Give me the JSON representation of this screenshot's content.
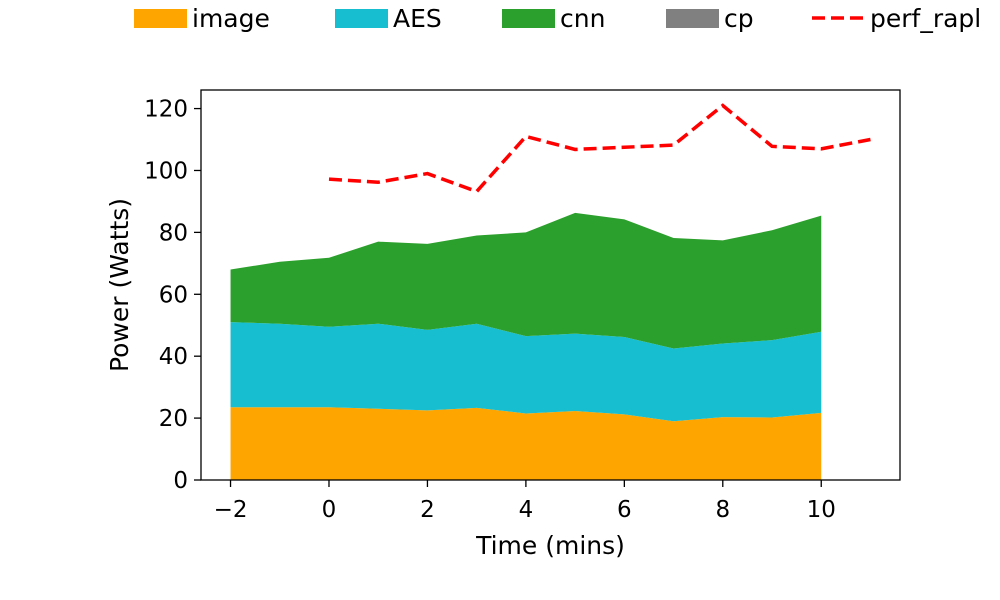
{
  "chart_data": {
    "type": "area",
    "title": "",
    "xlabel": "Time (mins)",
    "ylabel": "Power (Watts)",
    "xlim": [
      -2.6,
      11.6
    ],
    "ylim": [
      0,
      126
    ],
    "xticks": [
      -2,
      0,
      2,
      4,
      6,
      8,
      10
    ],
    "xtick_labels": [
      "−2",
      "0",
      "2",
      "4",
      "6",
      "8",
      "10"
    ],
    "yticks": [
      0,
      20,
      40,
      60,
      80,
      100,
      120
    ],
    "ytick_labels": [
      "0",
      "20",
      "40",
      "60",
      "80",
      "100",
      "120"
    ],
    "grid": false,
    "legend_position": "top",
    "x": [
      -2,
      -1,
      0,
      1,
      2,
      3,
      4,
      5,
      6,
      7,
      8,
      9,
      10
    ],
    "series": [
      {
        "name": "image",
        "color": "#ffa500",
        "values": [
          23.5,
          23.5,
          23.5,
          23,
          22.5,
          23.3,
          21.5,
          22.3,
          21.2,
          19,
          20.3,
          20.2,
          21.7
        ]
      },
      {
        "name": "AES",
        "color": "#17becf",
        "values": [
          27.5,
          27,
          26,
          27.5,
          26,
          27.2,
          25,
          25,
          25,
          23.5,
          23.8,
          25,
          26.2
        ]
      },
      {
        "name": "cnn",
        "color": "#2ca02c",
        "values": [
          17,
          20,
          22.3,
          26.5,
          27.8,
          28.5,
          33.5,
          39,
          38,
          35.7,
          33.3,
          35.5,
          37.5
        ]
      },
      {
        "name": "cp",
        "color": "#808080",
        "values": [
          0,
          0,
          0,
          0,
          0,
          0,
          0,
          0,
          0,
          0,
          0,
          0,
          0
        ]
      }
    ],
    "overlay_line": {
      "name": "perf_rapl",
      "color": "#ff0000",
      "style": "dashed",
      "x": [
        0,
        1,
        2,
        3,
        4,
        5,
        6,
        7,
        8,
        9,
        10,
        11
      ],
      "values": [
        97.2,
        96.2,
        99,
        93.2,
        111,
        106.8,
        107.5,
        108.2,
        121,
        107.8,
        107,
        110
      ]
    }
  }
}
